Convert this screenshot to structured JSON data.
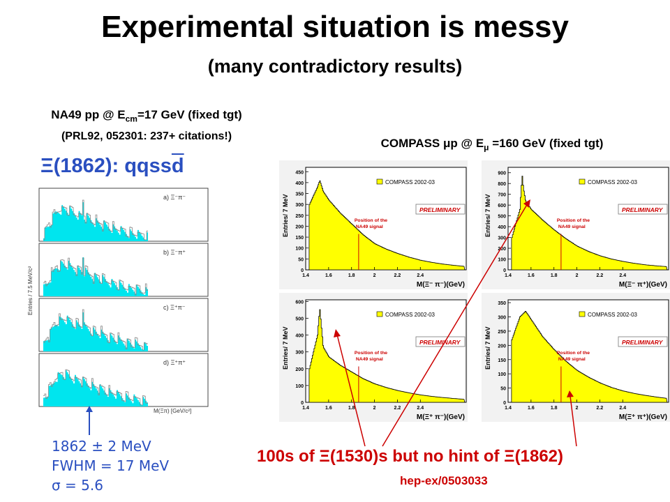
{
  "title": "Experimental situation is messy",
  "subtitle": "(many contradictory results)",
  "na49": {
    "line1_pre": "NA49 pp @ E",
    "line1_sub": "cm",
    "line1_post": "=17 GeV (fixed tgt)",
    "line2": "(PRL92, 052301:  237+ citations!)",
    "xi_symbol": "Ξ",
    "state_pre": "(1862): qqss",
    "state_bar": "d",
    "panel_labels": [
      "a) Ξ⁻π⁻",
      "b) Ξ⁻π⁺",
      "c) Ξ⁺π⁻",
      "d) Ξ⁺π⁺"
    ],
    "yaxis": "Entries / 7.5 MeV/c²",
    "xaxis": "M(Ξπ) [GeV/c²]",
    "mass_note": [
      "1862 ± 2 MeV",
      "FWHM = 17 MeV",
      "σ = 5.6"
    ]
  },
  "compass": {
    "head_pre": "COMPASS ",
    "mu": "μ",
    "head_mid": "p @ E",
    "head_post": " =160 GeV (fixed tgt)",
    "legend": "COMPASS 2002-03",
    "preliminary": "PRELIMINARY",
    "position_label": [
      "Position of the",
      "NA49 signal"
    ],
    "ylabel": "Entries/ 7 MeV"
  },
  "bottom_note": {
    "pre": "100s of ",
    "xi": "Ξ",
    "mid": "(1530)s but no hint of ",
    "post": "(1862)"
  },
  "reference": "hep-ex/0503033",
  "colors": {
    "title": "#000000",
    "blue": "#2a4fc0",
    "red": "#cc0000",
    "yellow": "#ffff00",
    "cyan": "#00e5ee"
  },
  "chart_data": [
    {
      "type": "bar",
      "title": "M(Ξ⁻π⁻)(GeV)",
      "xlabel": "M(Ξ⁻ π⁻)(GeV)",
      "ylabel": "Entries/ 7 MeV",
      "xlim": [
        1.4,
        2.8
      ],
      "ylim": [
        0,
        470
      ],
      "xticks": [
        1.4,
        1.6,
        1.8,
        2.0,
        2.2,
        2.4
      ],
      "yticks": [
        0,
        50,
        100,
        150,
        200,
        250,
        300,
        350,
        400,
        450
      ],
      "xtick_labels": [
        "1.4",
        "1.6",
        "1.8",
        "2",
        "2.2",
        "2.4"
      ],
      "marker_x": 1.862,
      "x": [
        1.43,
        1.5,
        1.52,
        1.55,
        1.6,
        1.7,
        1.8,
        1.9,
        2.0,
        2.1,
        2.2,
        2.3,
        2.4,
        2.5,
        2.6,
        2.7,
        2.78
      ],
      "values": [
        300,
        380,
        410,
        360,
        320,
        260,
        210,
        160,
        120,
        95,
        75,
        58,
        44,
        34,
        26,
        20,
        16
      ]
    },
    {
      "type": "bar",
      "title": "M(Ξ⁻π⁺)(GeV)",
      "xlabel": "M(Ξ⁻ π⁺)(GeV)",
      "ylabel": "Entries/ 7 MeV",
      "xlim": [
        1.4,
        2.8
      ],
      "ylim": [
        0,
        950
      ],
      "xticks": [
        1.4,
        1.6,
        1.8,
        2.0,
        2.2,
        2.4
      ],
      "yticks": [
        0,
        100,
        200,
        300,
        400,
        500,
        600,
        700,
        800,
        900
      ],
      "xtick_labels": [
        "1.4",
        "1.6",
        "1.8",
        "2",
        "2.2",
        "2.4"
      ],
      "marker_x": 1.862,
      "x": [
        1.43,
        1.5,
        1.52,
        1.53,
        1.55,
        1.6,
        1.7,
        1.8,
        1.9,
        2.0,
        2.1,
        2.2,
        2.3,
        2.4,
        2.5,
        2.6,
        2.7,
        2.78
      ],
      "values": [
        300,
        560,
        880,
        760,
        640,
        560,
        460,
        370,
        290,
        220,
        170,
        130,
        100,
        78,
        60,
        46,
        36,
        30
      ]
    },
    {
      "type": "bar",
      "title": "M(Ξ⁺π⁻)(GeV)",
      "xlabel": "M(Ξ⁺ π⁻)(GeV)",
      "ylabel": "Entries/ 7 MeV",
      "xlim": [
        1.4,
        2.8
      ],
      "ylim": [
        0,
        610
      ],
      "xticks": [
        1.4,
        1.6,
        1.8,
        2.0,
        2.2,
        2.4
      ],
      "yticks": [
        0,
        100,
        200,
        300,
        400,
        500,
        600
      ],
      "xtick_labels": [
        "1.4",
        "1.6",
        "1.8",
        "2",
        "2.2",
        "2.4"
      ],
      "marker_x": 1.862,
      "x": [
        1.43,
        1.5,
        1.52,
        1.53,
        1.55,
        1.6,
        1.7,
        1.8,
        1.9,
        2.0,
        2.1,
        2.2,
        2.3,
        2.4,
        2.5,
        2.6,
        2.7,
        2.78
      ],
      "values": [
        200,
        400,
        560,
        480,
        330,
        270,
        220,
        180,
        140,
        110,
        88,
        70,
        56,
        44,
        35,
        28,
        22,
        18
      ]
    },
    {
      "type": "bar",
      "title": "M(Ξ⁺π⁺)(GeV)",
      "xlabel": "M(Ξ⁺ π⁺)(GeV)",
      "ylabel": "Entries/ 7 MeV",
      "xlim": [
        1.4,
        2.8
      ],
      "ylim": [
        0,
        360
      ],
      "xticks": [
        1.4,
        1.6,
        1.8,
        2.0,
        2.2,
        2.4
      ],
      "yticks": [
        0,
        50,
        100,
        150,
        200,
        250,
        300,
        350
      ],
      "xtick_labels": [
        "1.4",
        "1.6",
        "1.8",
        "2",
        "2.2",
        "2.4"
      ],
      "marker_x": 1.862,
      "x": [
        1.43,
        1.5,
        1.55,
        1.6,
        1.7,
        1.8,
        1.9,
        2.0,
        2.1,
        2.2,
        2.3,
        2.4,
        2.5,
        2.6,
        2.7,
        2.78
      ],
      "values": [
        220,
        300,
        320,
        290,
        230,
        185,
        145,
        112,
        88,
        68,
        52,
        40,
        31,
        24,
        18,
        14
      ]
    }
  ]
}
